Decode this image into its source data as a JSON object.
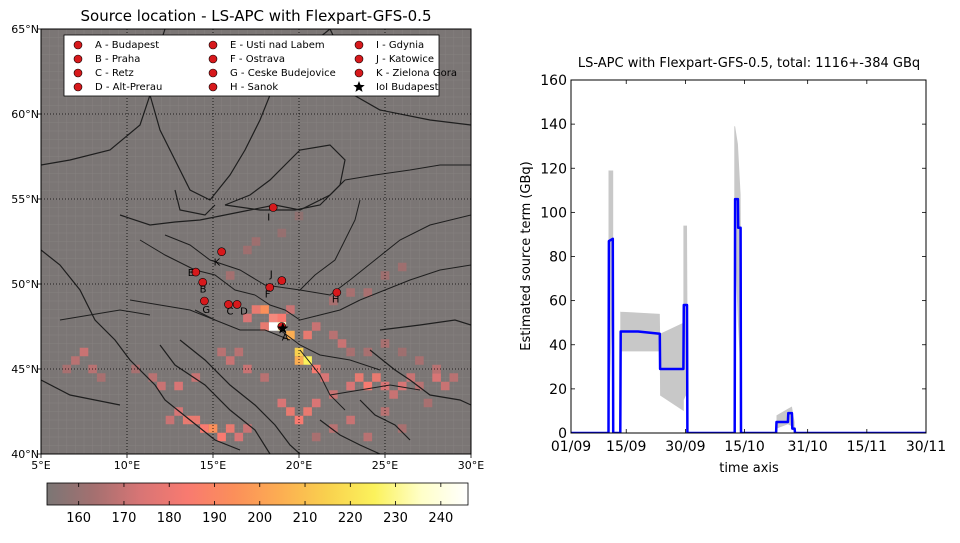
{
  "map": {
    "title": "Source location - LS-APC with Flexpart-GFS-0.5",
    "lat_ticks": [
      "65°N",
      "60°N",
      "55°N",
      "50°N",
      "45°N",
      "40°N"
    ],
    "lon_ticks": [
      "5°E",
      "10°E",
      "15°E",
      "20°E",
      "25°E",
      "30°E"
    ],
    "lat_range": [
      40,
      65
    ],
    "lon_range": [
      5,
      30
    ],
    "background_color": "#7b7675",
    "legend": [
      {
        "label": "A - Budapest",
        "marker": "dot"
      },
      {
        "label": "B - Praha",
        "marker": "dot"
      },
      {
        "label": "C - Retz",
        "marker": "dot"
      },
      {
        "label": "D - Alt-Prerau",
        "marker": "dot"
      },
      {
        "label": "E - Usti nad Labem",
        "marker": "dot"
      },
      {
        "label": "F - Ostrava",
        "marker": "dot"
      },
      {
        "label": "G - Ceske Budejovice",
        "marker": "dot"
      },
      {
        "label": "H - Sanok",
        "marker": "dot"
      },
      {
        "label": "I - Gdynia",
        "marker": "dot"
      },
      {
        "label": "J - Katowice",
        "marker": "dot"
      },
      {
        "label": "K - Zielona Gora",
        "marker": "dot"
      },
      {
        "label": "IoI Budapest",
        "marker": "star"
      }
    ],
    "stations": [
      {
        "letter": "A",
        "lon": 19.0,
        "lat": 47.5
      },
      {
        "letter": "B",
        "lon": 14.4,
        "lat": 50.1
      },
      {
        "letter": "C",
        "lon": 15.9,
        "lat": 48.8
      },
      {
        "letter": "D",
        "lon": 16.4,
        "lat": 48.8
      },
      {
        "letter": "E",
        "lon": 14.0,
        "lat": 50.7
      },
      {
        "letter": "F",
        "lon": 18.3,
        "lat": 49.8
      },
      {
        "letter": "G",
        "lon": 14.5,
        "lat": 49.0
      },
      {
        "letter": "H",
        "lon": 22.2,
        "lat": 49.5
      },
      {
        "letter": "I",
        "lon": 18.5,
        "lat": 54.5
      },
      {
        "letter": "J",
        "lon": 19.0,
        "lat": 50.2
      },
      {
        "letter": "K",
        "lon": 15.5,
        "lat": 51.9
      }
    ],
    "station_color": "#d7191c",
    "ioi": {
      "lon": 19.0,
      "lat": 47.5
    },
    "colorbar": {
      "ticks": [
        "160",
        "170",
        "180",
        "190",
        "200",
        "210",
        "220",
        "230",
        "240"
      ],
      "min": 153,
      "max": 246,
      "colors": [
        "#7b7675",
        "#a47070",
        "#d87575",
        "#f87a70",
        "#fb8f5a",
        "#fcae52",
        "#f9d14e",
        "#fbf25c",
        "#ffffc8",
        "#ffffff"
      ]
    }
  },
  "chart_data": {
    "type": "area",
    "title": "LS-APC with Flexpart-GFS-0.5, total: 1116+-384 GBq",
    "xlabel": "time axis",
    "ylabel": "Estimated source term (GBq)",
    "x_ticks": [
      "01/09",
      "15/09",
      "30/09",
      "15/10",
      "31/10",
      "15/11",
      "30/11"
    ],
    "x_tick_days": [
      0,
      14,
      29,
      44,
      60,
      75,
      90
    ],
    "xlim": [
      0,
      90
    ],
    "ylim": [
      0,
      160
    ],
    "y_ticks": [
      0,
      20,
      40,
      60,
      80,
      100,
      120,
      140,
      160
    ],
    "series": [
      {
        "role": "estimate",
        "color": "#0000ff",
        "x": [
          0,
          9.5,
          9.6,
          10.6,
          10.7,
          12.5,
          12.6,
          17.0,
          22.5,
          22.6,
          28.5,
          28.6,
          29.4,
          29.5,
          41.5,
          41.6,
          42.3,
          42.4,
          43.0,
          43.1,
          52.0,
          52.1,
          55.0,
          55.1,
          56.0,
          56.1,
          56.7,
          56.8,
          90
        ],
        "y": [
          0,
          0,
          87,
          88,
          0,
          0,
          46,
          46,
          45,
          29,
          29,
          58,
          58,
          0,
          0,
          106,
          106,
          93,
          93,
          0,
          0,
          5,
          5,
          9,
          9,
          2,
          2,
          0,
          0
        ]
      },
      {
        "role": "uncertainty",
        "color": "#c8c8c8",
        "x": [
          9.5,
          10.6,
          12.6,
          22.5,
          22.6,
          28.5,
          28.6,
          29.4,
          41.6,
          42.3,
          43.0,
          52.1,
          55.0,
          56.0,
          56.7
        ],
        "upper": [
          119,
          119,
          55,
          54,
          45,
          50,
          94,
          94,
          139,
          131,
          108,
          8,
          11,
          12,
          5
        ],
        "lower": [
          0,
          64,
          37,
          37,
          17,
          10,
          15,
          18,
          84,
          50,
          27,
          2,
          4,
          3,
          0
        ]
      }
    ]
  }
}
